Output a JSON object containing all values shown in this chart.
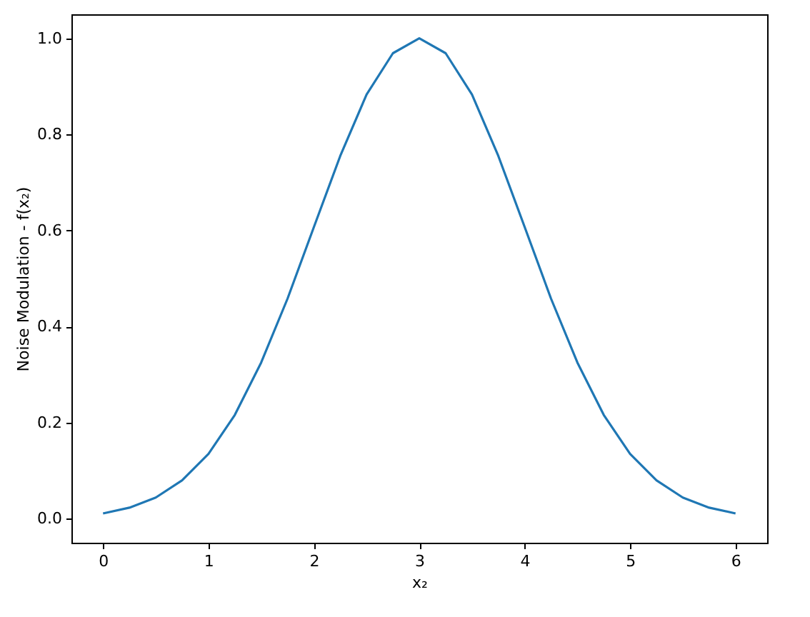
{
  "chart_data": {
    "type": "line",
    "xlabel": "x₂",
    "ylabel": "Noise Modulation - f(x₂)",
    "x": [
      0,
      0.25,
      0.5,
      0.75,
      1,
      1.25,
      1.5,
      1.75,
      2,
      2.25,
      2.5,
      2.75,
      3,
      3.25,
      3.5,
      3.75,
      4,
      4.25,
      4.5,
      4.75,
      5,
      5.25,
      5.5,
      5.75,
      6
    ],
    "series": [
      {
        "color": "#1f77b4",
        "values": [
          0.011,
          0.023,
          0.044,
          0.08,
          0.135,
          0.216,
          0.325,
          0.458,
          0.607,
          0.755,
          0.883,
          0.969,
          1.0,
          0.969,
          0.883,
          0.755,
          0.607,
          0.458,
          0.325,
          0.216,
          0.135,
          0.08,
          0.044,
          0.023,
          0.011
        ]
      }
    ],
    "xlim": [
      -0.3,
      6.3
    ],
    "ylim": [
      -0.05,
      1.05
    ],
    "xticks": [
      0,
      1,
      2,
      3,
      4,
      5,
      6
    ],
    "yticks": [
      {
        "value": 0,
        "label": "0.0"
      },
      {
        "value": 0.2,
        "label": "0.2"
      },
      {
        "value": 0.4,
        "label": "0.4"
      },
      {
        "value": 0.6,
        "label": "0.6"
      },
      {
        "value": 0.8,
        "label": "0.8"
      },
      {
        "value": 1,
        "label": "1.0"
      }
    ],
    "grid": false,
    "marker": "none",
    "line_style": "solid"
  }
}
